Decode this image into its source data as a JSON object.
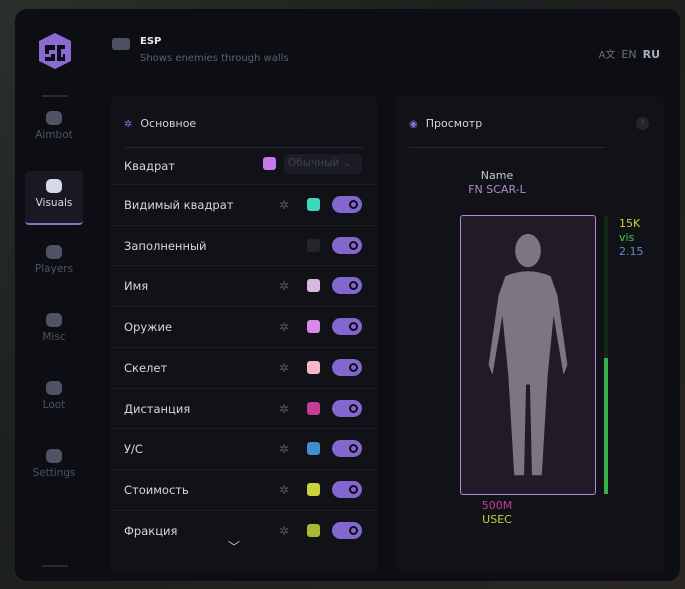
{
  "header": {
    "title": "ESP",
    "subtitle": "Shows enemies through walls",
    "lang_current": "RU",
    "lang_other": "EN"
  },
  "sidebar": {
    "items": [
      {
        "label": "Aimbot",
        "icon": "alien-icon"
      },
      {
        "label": "Visuals",
        "icon": "vr-headset-icon",
        "active": true
      },
      {
        "label": "Players",
        "icon": "users-icon"
      },
      {
        "label": "Misc",
        "icon": "dots-icon"
      },
      {
        "label": "Loot",
        "icon": "briefcase-icon"
      },
      {
        "label": "Settings",
        "icon": "list-icon"
      }
    ]
  },
  "main_panel": {
    "title": "Основное",
    "first_row": {
      "label": "Квадрат",
      "color": "#c878e8",
      "select": "Обычный"
    },
    "rows": [
      {
        "label": "Видимый квадрат",
        "color": "#3fd6c0",
        "gear": true,
        "enabled": true
      },
      {
        "label": "Заполненный",
        "color": "#24252c",
        "gear": false,
        "enabled": true
      },
      {
        "label": "Имя",
        "color": "#d6b8e0",
        "gear": true,
        "enabled": true
      },
      {
        "label": "Оружие",
        "color": "#d78be6",
        "gear": true,
        "enabled": true
      },
      {
        "label": "Скелет",
        "color": "#f5b8c8",
        "gear": true,
        "enabled": true
      },
      {
        "label": "Дистанция",
        "color": "#c43e96",
        "gear": true,
        "enabled": true
      },
      {
        "label": "У/С",
        "color": "#3f8fd0",
        "gear": true,
        "enabled": true
      },
      {
        "label": "Стоимость",
        "color": "#c8d43a",
        "gear": true,
        "enabled": true
      },
      {
        "label": "Фракция",
        "color": "#a8b832",
        "gear": true,
        "enabled": true
      }
    ]
  },
  "preview": {
    "title": "Просмотр",
    "help": "?",
    "name": "Name",
    "weapon": "FN SCAR-L",
    "price": "15K",
    "visibility": "vis",
    "kd": "2.15",
    "distance": "500M",
    "faction": "USEC",
    "health_fraction": 0.49
  }
}
